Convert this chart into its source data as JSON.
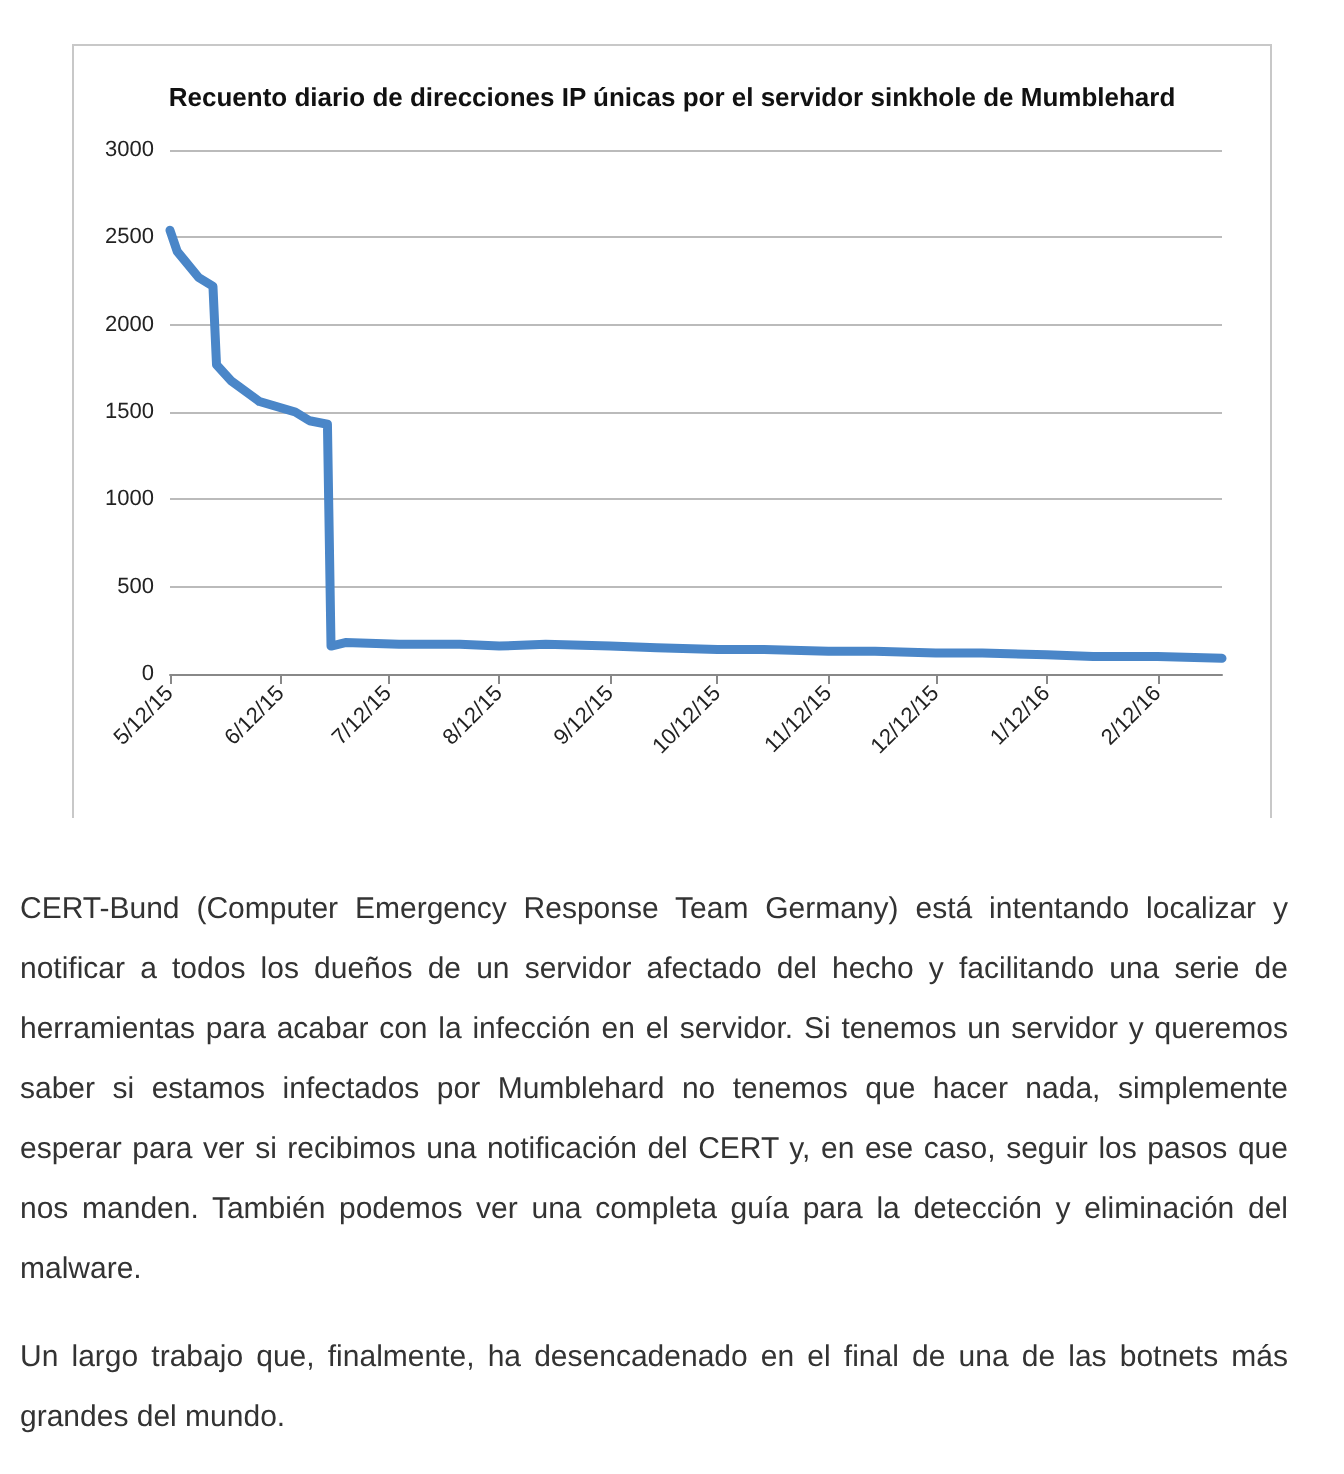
{
  "chart_data": {
    "type": "line",
    "title": "Recuento diario de direcciones IP únicas por el servidor sinkhole de Mumblehard",
    "x": [
      "2015-05-12",
      "2015-05-14",
      "2015-05-20",
      "2015-05-24",
      "2015-05-25",
      "2015-05-29",
      "2015-06-06",
      "2015-06-16",
      "2015-06-20",
      "2015-06-25",
      "2015-06-26",
      "2015-06-30",
      "2015-07-15",
      "2015-08-01",
      "2015-08-12",
      "2015-08-25",
      "2015-09-12",
      "2015-09-25",
      "2015-10-12",
      "2015-10-25",
      "2015-11-12",
      "2015-11-25",
      "2015-12-12",
      "2015-12-25",
      "2016-01-12",
      "2016-01-25",
      "2016-02-12",
      "2016-03-01"
    ],
    "series": [
      {
        "color": "#4a86c8",
        "values": [
          2540,
          2420,
          2270,
          2220,
          1770,
          1680,
          1560,
          1500,
          1450,
          1430,
          160,
          180,
          170,
          170,
          160,
          170,
          160,
          150,
          140,
          140,
          130,
          130,
          120,
          120,
          110,
          100,
          100,
          90
        ]
      }
    ],
    "xlim": [
      "2015-05-12",
      "2016-03-01"
    ],
    "xticks": [
      {
        "value": "2015-05-12",
        "label": "5/12/15"
      },
      {
        "value": "2015-06-12",
        "label": "6/12/15"
      },
      {
        "value": "2015-07-12",
        "label": "7/12/15"
      },
      {
        "value": "2015-08-12",
        "label": "8/12/15"
      },
      {
        "value": "2015-09-12",
        "label": "9/12/15"
      },
      {
        "value": "2015-10-12",
        "label": "10/12/15"
      },
      {
        "value": "2015-11-12",
        "label": "11/12/15"
      },
      {
        "value": "2015-12-12",
        "label": "12/12/15"
      },
      {
        "value": "2016-01-12",
        "label": "1/12/16"
      },
      {
        "value": "2016-02-12",
        "label": "2/12/16"
      }
    ],
    "ylim": [
      0,
      3000
    ],
    "yticks": [
      0,
      500,
      1000,
      1500,
      2000,
      2500,
      3000
    ],
    "grid": "y",
    "marker": "none",
    "line_style": "solid",
    "annotations": [
      "CERT-Bund (Computer Emergency Response Team Germany) está intentando localizar y notificar a todos los dueños de un servidor afectado del hecho y facilitando una serie de herramientas para acabar con la infección en el servidor. Si tenemos un servidor y queremos saber si estamos infectados por Mumblehard no tenemos que hacer nada, simplemente esperar para ver si recibimos una notificación del CERT y, en ese caso, seguir los pasos que nos manden. También podemos ver una completa guía para la detección y eliminación del malware.",
      "Un largo trabajo que, finalmente, ha desencadenado en el final de una de las botnets más grandes del mundo."
    ]
  }
}
